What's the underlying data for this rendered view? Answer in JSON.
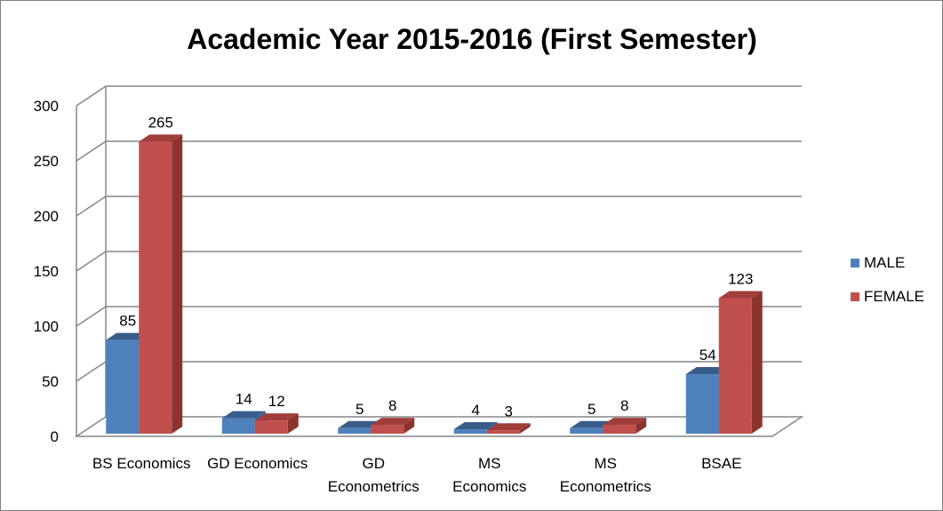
{
  "chart_data": {
    "type": "bar",
    "title": "Academic Year 2015-2016 (First Semester)",
    "categories": [
      [
        "BS Economics"
      ],
      [
        "GD Economics"
      ],
      [
        "GD",
        "Econometrics"
      ],
      [
        "MS",
        "Economics"
      ],
      [
        "MS",
        "Econometrics"
      ],
      [
        "BSAE"
      ]
    ],
    "series": [
      {
        "name": "MALE",
        "values": [
          85,
          14,
          5,
          4,
          5,
          54
        ],
        "color": "#4F81BD",
        "side": "#3A6496",
        "top": "#385D8A"
      },
      {
        "name": "FEMALE",
        "values": [
          265,
          12,
          8,
          3,
          8,
          123
        ],
        "color": "#C0504D",
        "side": "#8C3330",
        "top": "#A13E3B"
      }
    ],
    "ylim": [
      0,
      300
    ],
    "yticks": [
      "0",
      "50",
      "100",
      "150",
      "200",
      "250",
      "300"
    ],
    "grid": true,
    "legend": "right",
    "three_d": true
  }
}
